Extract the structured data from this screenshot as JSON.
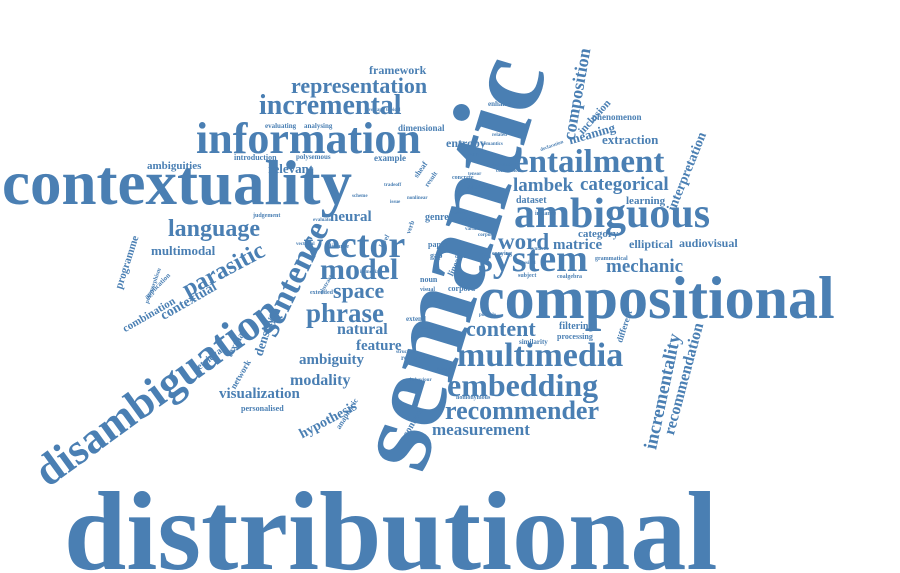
{
  "color": "#4a7fb3",
  "words": [
    {
      "id": "distributional",
      "text": "distributional"
    },
    {
      "id": "semantic",
      "text": "semantic"
    },
    {
      "id": "contextuality",
      "text": "contextuality"
    },
    {
      "id": "compositional",
      "text": "compositional"
    },
    {
      "id": "disambiguation",
      "text": "disambiguation"
    },
    {
      "id": "information",
      "text": "information"
    },
    {
      "id": "ambiguous",
      "text": "ambiguous"
    },
    {
      "id": "entailment",
      "text": "entailment"
    },
    {
      "id": "multimedia",
      "text": "multimedia"
    },
    {
      "id": "embedding",
      "text": "embedding"
    },
    {
      "id": "recommender",
      "text": "recommender"
    },
    {
      "id": "incremental",
      "text": "incremental"
    },
    {
      "id": "representation",
      "text": "representation"
    },
    {
      "id": "vector",
      "text": "vector"
    },
    {
      "id": "system",
      "text": "system"
    },
    {
      "id": "model",
      "text": "model"
    },
    {
      "id": "sentence",
      "text": "sentence"
    },
    {
      "id": "language",
      "text": "language"
    },
    {
      "id": "phrase",
      "text": "phrase"
    },
    {
      "id": "space",
      "text": "space"
    },
    {
      "id": "word",
      "text": "word"
    },
    {
      "id": "content",
      "text": "content"
    },
    {
      "id": "measurement",
      "text": "measurement"
    },
    {
      "id": "mechanic",
      "text": "mechanic"
    },
    {
      "id": "lambek",
      "text": "lambek"
    },
    {
      "id": "categorical",
      "text": "categorical"
    },
    {
      "id": "parasitic",
      "text": "parasitic"
    },
    {
      "id": "composition",
      "text": "composition"
    },
    {
      "id": "incrementality",
      "text": "incrementality"
    },
    {
      "id": "recommendation",
      "text": "recommendation"
    },
    {
      "id": "interpretation",
      "text": "interpretation"
    },
    {
      "id": "visualization",
      "text": "visualization"
    },
    {
      "id": "modality",
      "text": "modality"
    },
    {
      "id": "ambiguity",
      "text": "ambiguity"
    },
    {
      "id": "feature",
      "text": "feature"
    },
    {
      "id": "natural",
      "text": "natural"
    },
    {
      "id": "neural",
      "text": "neural"
    },
    {
      "id": "matrice",
      "text": "matrice"
    },
    {
      "id": "elliptical",
      "text": "elliptical"
    },
    {
      "id": "audiovisual",
      "text": "audiovisual"
    },
    {
      "id": "category",
      "text": "category"
    },
    {
      "id": "learning",
      "text": "learning"
    },
    {
      "id": "dataset",
      "text": "dataset"
    },
    {
      "id": "extraction",
      "text": "extraction"
    },
    {
      "id": "meaning",
      "text": "meaning"
    },
    {
      "id": "entropy",
      "text": "entropy"
    },
    {
      "id": "framework",
      "text": "framework"
    },
    {
      "id": "ambiguities",
      "text": "ambiguities"
    },
    {
      "id": "relevant",
      "text": "relevant"
    },
    {
      "id": "multimodal",
      "text": "multimodal"
    },
    {
      "id": "contextual",
      "text": "contextual"
    },
    {
      "id": "combination",
      "text": "combination"
    },
    {
      "id": "programme",
      "text": "programme"
    },
    {
      "id": "density",
      "text": "density"
    },
    {
      "id": "hypothesis",
      "text": "hypothesis"
    },
    {
      "id": "filtering",
      "text": "filtering"
    },
    {
      "id": "processing",
      "text": "processing"
    },
    {
      "id": "similarity",
      "text": "similarity"
    },
    {
      "id": "different",
      "text": "different"
    },
    {
      "id": "phenomenon",
      "text": "phenomenon"
    },
    {
      "id": "inclusion",
      "text": "inclusion"
    },
    {
      "id": "enhancing",
      "text": "enhancing"
    },
    {
      "id": "dimensional",
      "text": "dimensional"
    },
    {
      "id": "evaluating",
      "text": "evaluating"
    },
    {
      "id": "analysing",
      "text": "analysing"
    },
    {
      "id": "introduction",
      "text": "introduction"
    },
    {
      "id": "polysemous",
      "text": "polysemous"
    },
    {
      "id": "example",
      "text": "example"
    },
    {
      "id": "personalised",
      "text": "personalised"
    },
    {
      "id": "anaphoric",
      "text": "anaphoric"
    },
    {
      "id": "retrieval",
      "text": "retrieval"
    },
    {
      "id": "textual",
      "text": "textual"
    },
    {
      "id": "network",
      "text": "network"
    },
    {
      "id": "genre",
      "text": "genre"
    },
    {
      "id": "based",
      "text": "based"
    },
    {
      "id": "concrete",
      "text": "concrete"
    },
    {
      "id": "analysis",
      "text": "analysis"
    },
    {
      "id": "noun",
      "text": "noun"
    },
    {
      "id": "extend",
      "text": "extend"
    },
    {
      "id": "research",
      "text": "research"
    },
    {
      "id": "homonymous",
      "text": "homonymous"
    },
    {
      "id": "context",
      "text": "context"
    },
    {
      "id": "judgement",
      "text": "judgement"
    },
    {
      "id": "application",
      "text": "application"
    },
    {
      "id": "polymorphism",
      "text": "polymorphism"
    },
    {
      "id": "linear",
      "text": "linear"
    },
    {
      "id": "extended",
      "text": "extended"
    },
    {
      "id": "distance",
      "text": "distance"
    },
    {
      "id": "instance",
      "text": "instance"
    },
    {
      "id": "paper",
      "text": "paper"
    },
    {
      "id": "gap",
      "text": "gap"
    },
    {
      "id": "data",
      "text": "data"
    },
    {
      "id": "corpora",
      "text": "corpora"
    },
    {
      "id": "copying",
      "text": "copying"
    },
    {
      "id": "grammatical",
      "text": "grammatical"
    },
    {
      "id": "coalgebra",
      "text": "coalgebra"
    },
    {
      "id": "subject",
      "text": "subject"
    },
    {
      "id": "verb",
      "text": "verb"
    },
    {
      "id": "level",
      "text": "level"
    },
    {
      "id": "sheaf",
      "text": "sheaf"
    },
    {
      "id": "result",
      "text": "result"
    },
    {
      "id": "structure",
      "text": "structure"
    },
    {
      "id": "abstract",
      "text": "abstract"
    },
    {
      "id": "contraction",
      "text": "contraction"
    },
    {
      "id": "tensor",
      "text": "tensor"
    },
    {
      "id": "immediate",
      "text": "immediate"
    },
    {
      "id": "visual",
      "text": "visual"
    },
    {
      "id": "topical",
      "text": "topical"
    },
    {
      "id": "overlap",
      "text": "overlap"
    },
    {
      "id": "corpus",
      "text": "corpus"
    },
    {
      "id": "evaluate",
      "text": "evaluate"
    },
    {
      "id": "variant",
      "text": "variant"
    },
    {
      "id": "nature",
      "text": "nature"
    },
    {
      "id": "possible",
      "text": "possible"
    },
    {
      "id": "missing",
      "text": "missing"
    },
    {
      "id": "doesnt",
      "text": "doesnt"
    },
    {
      "id": "behaviour",
      "text": "behaviour"
    },
    {
      "id": "semantics",
      "text": "semantics"
    },
    {
      "id": "reality",
      "text": "reality"
    },
    {
      "id": "quantum",
      "text": "quantum"
    },
    {
      "id": "nonlinear",
      "text": "nonlinear"
    },
    {
      "id": "tradeoff",
      "text": "tradeoff"
    },
    {
      "id": "scheme",
      "text": "scheme"
    },
    {
      "id": "issue",
      "text": "issue"
    },
    {
      "id": "vectorial",
      "text": "vectorial"
    },
    {
      "id": "classical",
      "text": "classical"
    },
    {
      "id": "syntactic",
      "text": "syntactic"
    },
    {
      "id": "related",
      "text": "related"
    },
    {
      "id": "declaration",
      "text": "declaration"
    },
    {
      "id": "tool",
      "text": "tool"
    }
  ]
}
